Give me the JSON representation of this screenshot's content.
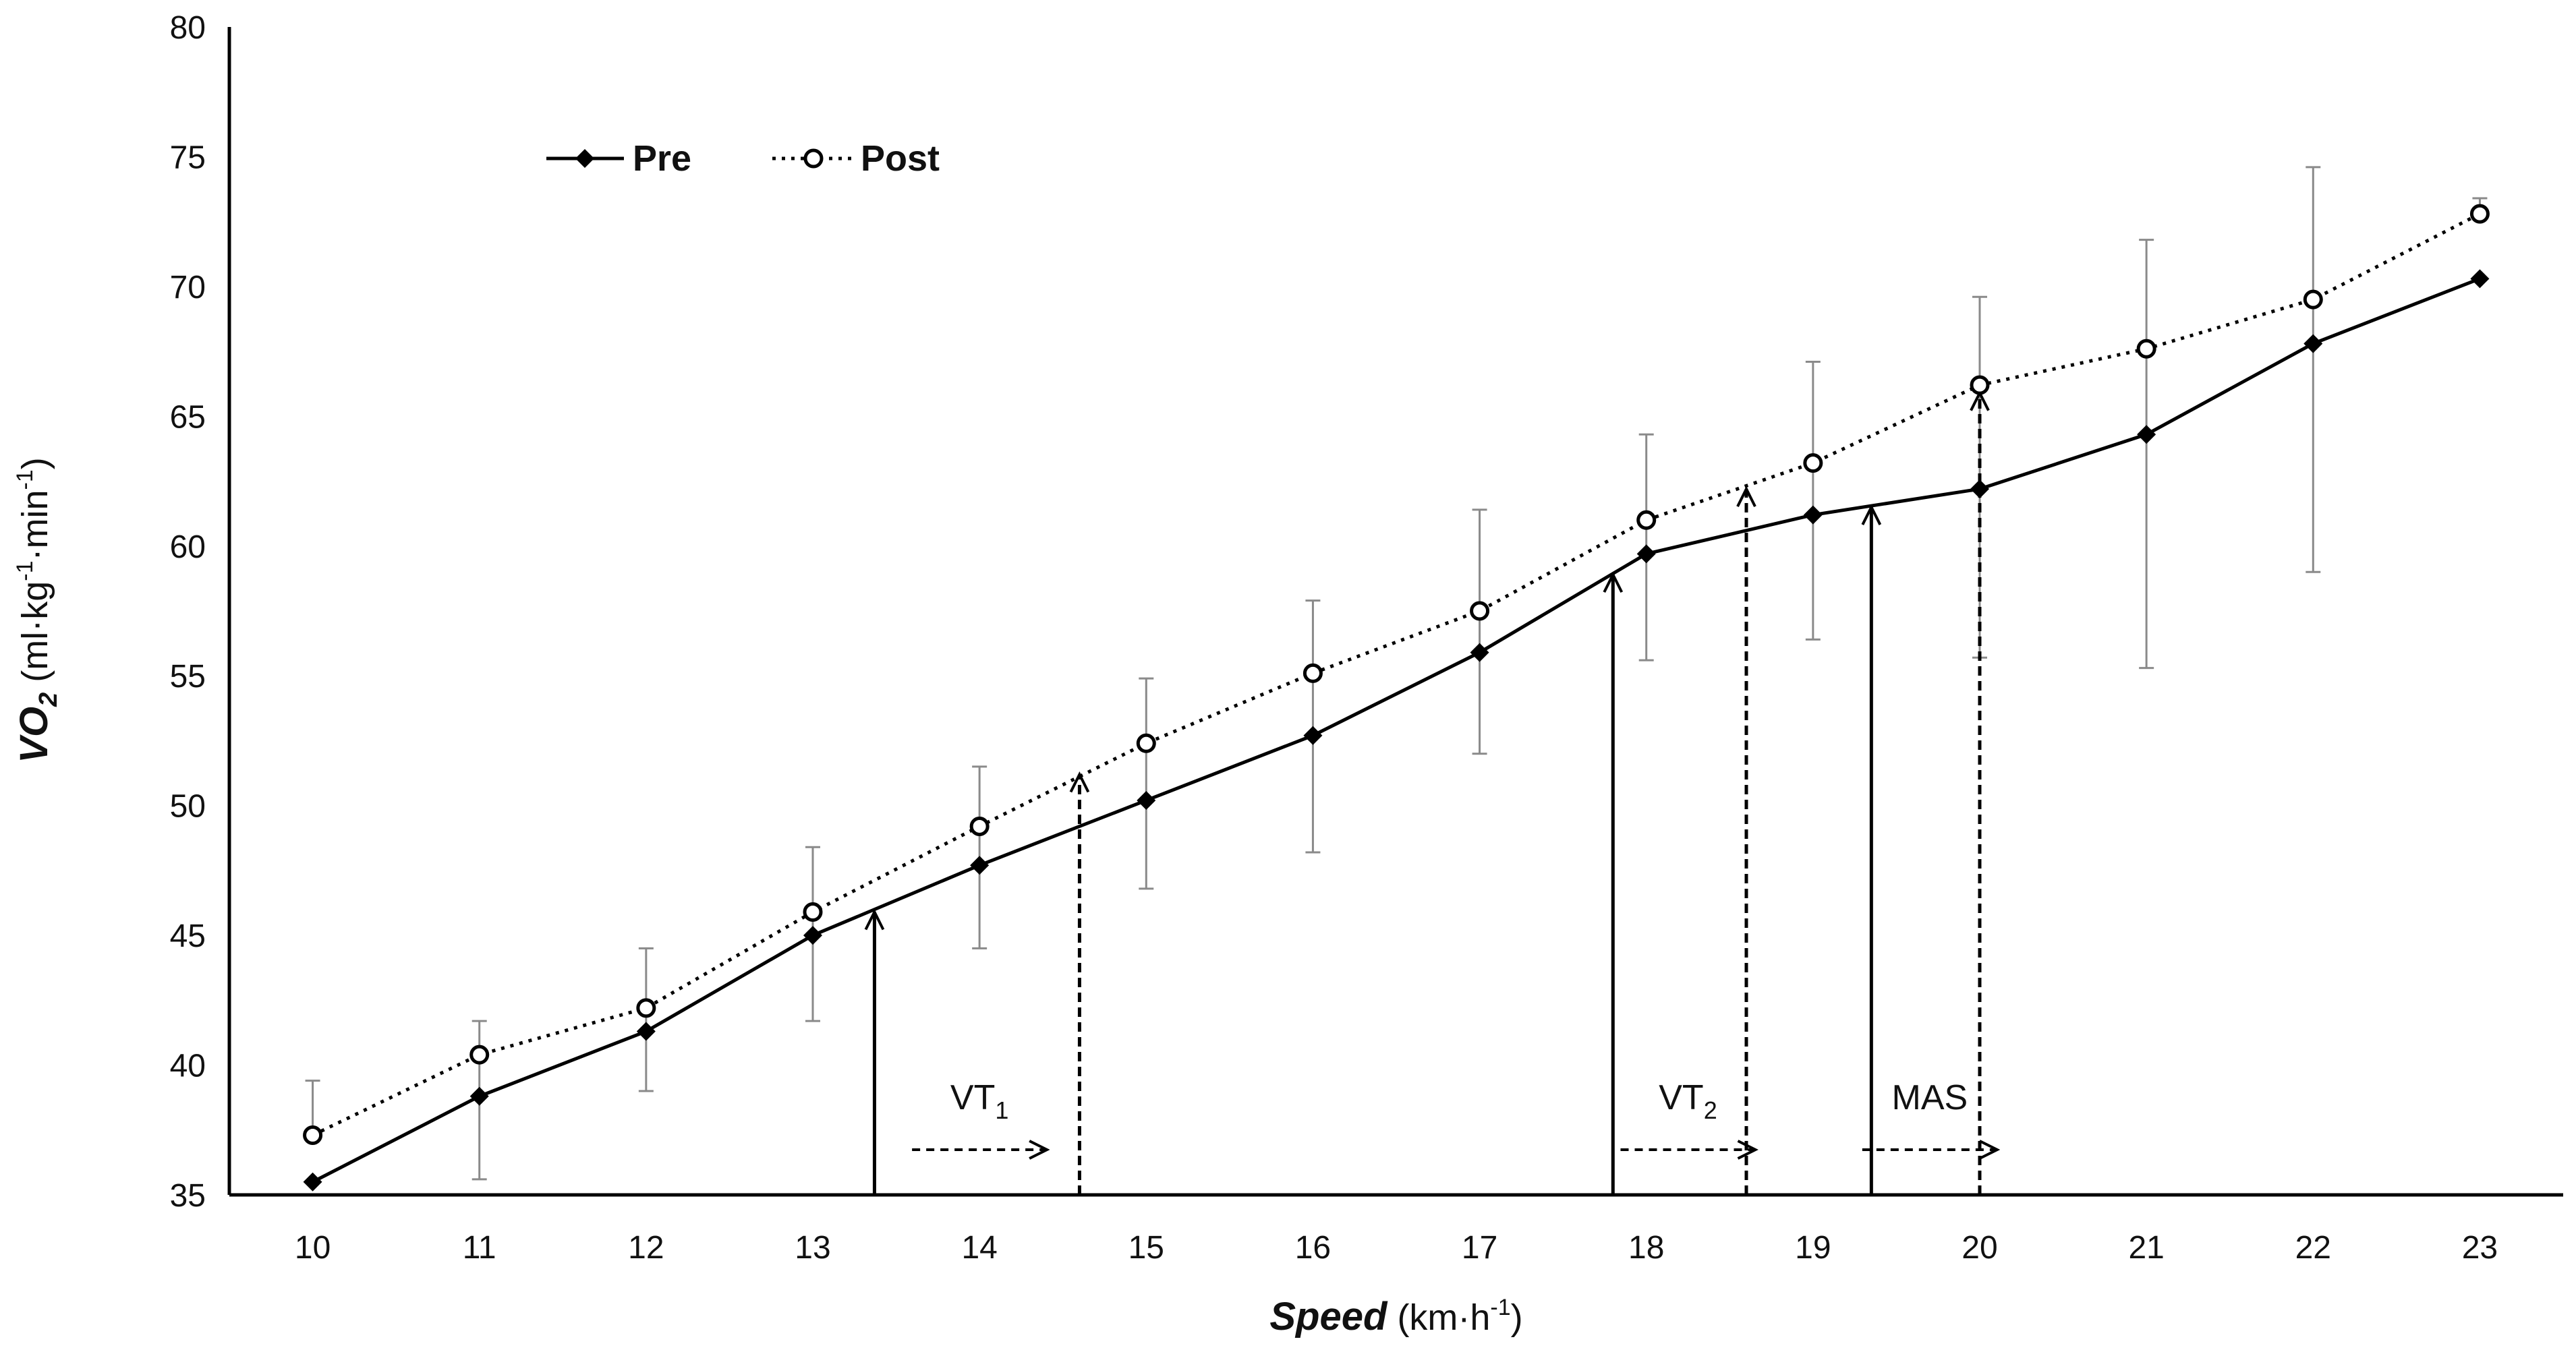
{
  "chart_data": {
    "type": "line",
    "title": "",
    "xlabel": {
      "main": "Speed",
      "unit": "(km·h",
      "unit_sup": "-1",
      "unit_end": ")"
    },
    "ylabel": {
      "main": "VO",
      "main_sub": "2",
      "unit": "(ml·kg",
      "unit_sup1": "-1",
      "unit_mid": "·min",
      "unit_sup2": "-1",
      "unit_end": ")"
    },
    "xlim": [
      9.5,
      23.5
    ],
    "ylim": [
      35,
      80
    ],
    "x_ticks": [
      10,
      11,
      12,
      13,
      14,
      15,
      16,
      17,
      18,
      19,
      20,
      21,
      22,
      23
    ],
    "y_ticks": [
      35,
      40,
      45,
      50,
      55,
      60,
      65,
      70,
      75,
      80
    ],
    "legend_position": "top-left",
    "series": [
      {
        "name": "Pre",
        "style": "solid-diamond",
        "color": "#000000",
        "x": [
          10,
          11,
          12,
          13,
          14,
          15,
          16,
          17,
          18,
          19,
          20,
          21,
          22,
          23
        ],
        "y": [
          35.5,
          38.8,
          41.3,
          45.0,
          47.7,
          50.2,
          52.7,
          55.9,
          59.7,
          61.2,
          62.2,
          64.3,
          67.8,
          70.3
        ]
      },
      {
        "name": "Post",
        "style": "dotted-circle",
        "color": "#000000",
        "x": [
          10,
          11,
          12,
          13,
          14,
          15,
          16,
          17,
          18,
          19,
          20,
          21,
          22,
          23
        ],
        "y": [
          37.3,
          40.4,
          42.2,
          45.9,
          49.2,
          52.4,
          55.1,
          57.5,
          61.0,
          63.2,
          66.2,
          67.6,
          69.5,
          72.8
        ]
      }
    ],
    "error_bars": [
      {
        "x": 10,
        "low": 37.3,
        "high": 39.4
      },
      {
        "x": 11,
        "low": 35.6,
        "high": 41.7
      },
      {
        "x": 12,
        "low": 39.0,
        "high": 44.5
      },
      {
        "x": 13,
        "low": 41.7,
        "high": 48.4
      },
      {
        "x": 14,
        "low": 44.5,
        "high": 51.5
      },
      {
        "x": 15,
        "low": 46.8,
        "high": 54.9
      },
      {
        "x": 16,
        "low": 48.2,
        "high": 57.9
      },
      {
        "x": 17,
        "low": 52.0,
        "high": 61.4
      },
      {
        "x": 18,
        "low": 55.6,
        "high": 64.3
      },
      {
        "x": 19,
        "low": 56.4,
        "high": 67.1
      },
      {
        "x": 20,
        "low": 55.7,
        "high": 69.6
      },
      {
        "x": 21,
        "low": 55.3,
        "high": 71.8
      },
      {
        "x": 22,
        "low": 59.0,
        "high": 74.6
      },
      {
        "x": 23,
        "low": 72.8,
        "high": 73.4
      }
    ],
    "threshold_markers": [
      {
        "name": "VT",
        "sub": "1",
        "pre_x": 13.37,
        "pre_y": 45.9,
        "post_x": 14.6,
        "post_y": 51.2,
        "label_x": 14.0,
        "label_y": 38.3
      },
      {
        "name": "VT",
        "sub": "2",
        "pre_x": 17.8,
        "pre_y": 58.9,
        "post_x": 18.6,
        "post_y": 62.2,
        "label_x": 18.25,
        "label_y": 38.3
      },
      {
        "name": "MAS",
        "sub": "",
        "pre_x": 19.35,
        "pre_y": 61.5,
        "post_x": 20.0,
        "post_y": 65.9,
        "label_x": 19.7,
        "label_y": 38.3
      }
    ]
  }
}
